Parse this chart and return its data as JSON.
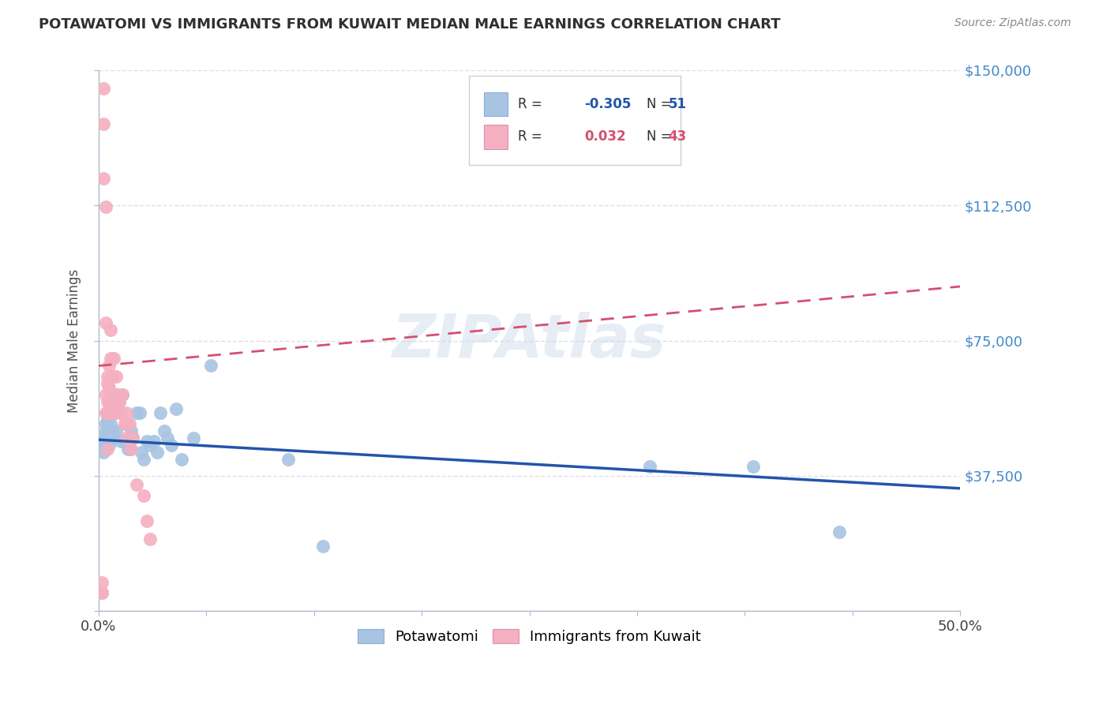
{
  "title": "POTAWATOMI VS IMMIGRANTS FROM KUWAIT MEDIAN MALE EARNINGS CORRELATION CHART",
  "source": "Source: ZipAtlas.com",
  "ylabel": "Median Male Earnings",
  "xlim": [
    0,
    0.5
  ],
  "ylim": [
    0,
    150000
  ],
  "yticks": [
    0,
    37500,
    75000,
    112500,
    150000
  ],
  "ytick_labels": [
    "",
    "$37,500",
    "$75,000",
    "$112,500",
    "$150,000"
  ],
  "xticks": [
    0.0,
    0.0625,
    0.125,
    0.1875,
    0.25,
    0.3125,
    0.375,
    0.4375,
    0.5
  ],
  "xtick_labels_show": [
    "0.0%",
    "",
    "",
    "",
    "",
    "",
    "",
    "",
    "50.0%"
  ],
  "blue_color": "#a8c4e2",
  "pink_color": "#f4afc0",
  "blue_line_color": "#2255aa",
  "pink_line_color": "#d45070",
  "blue_R": -0.305,
  "blue_N": 51,
  "pink_R": 0.032,
  "pink_N": 43,
  "watermark": "ZIPAtlas",
  "title_color": "#303030",
  "right_tick_color": "#4488cc",
  "grid_color": "#e0e0e8",
  "blue_line_x0": 0.0,
  "blue_line_y0": 47500,
  "blue_line_x1": 0.5,
  "blue_line_y1": 34000,
  "pink_line_x0": 0.0,
  "pink_line_y0": 68000,
  "pink_line_x1": 0.5,
  "pink_line_y1": 90000,
  "blue_scatter_x": [
    0.003,
    0.003,
    0.003,
    0.003,
    0.004,
    0.004,
    0.004,
    0.004,
    0.005,
    0.005,
    0.005,
    0.005,
    0.006,
    0.006,
    0.007,
    0.007,
    0.008,
    0.009,
    0.01,
    0.01,
    0.011,
    0.012,
    0.013,
    0.014,
    0.015,
    0.016,
    0.017,
    0.018,
    0.019,
    0.02,
    0.022,
    0.024,
    0.025,
    0.026,
    0.028,
    0.03,
    0.032,
    0.034,
    0.036,
    0.038,
    0.04,
    0.042,
    0.045,
    0.048,
    0.055,
    0.065,
    0.11,
    0.13,
    0.32,
    0.38,
    0.43
  ],
  "blue_scatter_y": [
    48000,
    47000,
    46000,
    44000,
    52000,
    50000,
    48000,
    46000,
    55000,
    53000,
    51000,
    47000,
    50000,
    46000,
    55000,
    52000,
    50000,
    48000,
    60000,
    50000,
    58000,
    58000,
    47000,
    60000,
    47000,
    47000,
    45000,
    45000,
    50000,
    48000,
    55000,
    55000,
    44000,
    42000,
    47000,
    46000,
    47000,
    44000,
    55000,
    50000,
    48000,
    46000,
    56000,
    42000,
    48000,
    68000,
    42000,
    18000,
    40000,
    40000,
    22000
  ],
  "pink_scatter_x": [
    0.002,
    0.002,
    0.002,
    0.003,
    0.003,
    0.003,
    0.004,
    0.004,
    0.004,
    0.005,
    0.005,
    0.005,
    0.005,
    0.005,
    0.006,
    0.006,
    0.006,
    0.006,
    0.007,
    0.007,
    0.007,
    0.008,
    0.008,
    0.009,
    0.009,
    0.01,
    0.01,
    0.011,
    0.012,
    0.013,
    0.014,
    0.015,
    0.016,
    0.016,
    0.016,
    0.018,
    0.019,
    0.02,
    0.022,
    0.026,
    0.028,
    0.03,
    0.004
  ],
  "pink_scatter_y": [
    5000,
    8000,
    5000,
    145000,
    135000,
    120000,
    80000,
    60000,
    55000,
    65000,
    63000,
    58000,
    55000,
    45000,
    68000,
    62000,
    58000,
    55000,
    78000,
    70000,
    55000,
    65000,
    60000,
    70000,
    55000,
    65000,
    55000,
    60000,
    58000,
    55000,
    60000,
    52000,
    55000,
    52000,
    48000,
    52000,
    45000,
    48000,
    35000,
    32000,
    25000,
    20000,
    112000
  ]
}
